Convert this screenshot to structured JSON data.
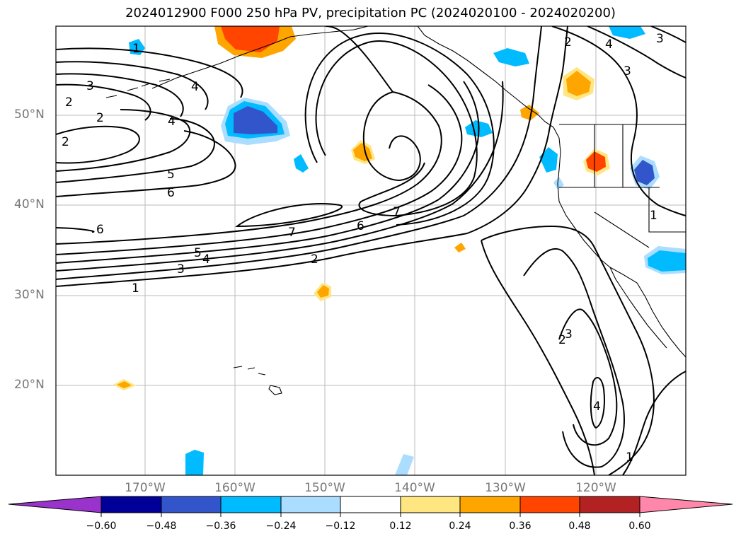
{
  "title": "2024012900 F000 250 hPa PV, precipitation PC (2024020100 - 2024020200)",
  "lat_labels": [
    "50°N",
    "40°N",
    "30°N",
    "20°N"
  ],
  "lon_labels": [
    "170°W",
    "160°W",
    "150°W",
    "140°W",
    "130°W",
    "120°W"
  ],
  "contour_labels": [
    "1",
    "2",
    "3",
    "4",
    "5",
    "6",
    "7",
    "1",
    "2",
    "3",
    "4",
    "5",
    "6",
    "7",
    "2",
    "2",
    "3",
    "4",
    "6",
    "2",
    "3",
    "4",
    "1",
    "1",
    "2",
    "3",
    "4"
  ],
  "colorbar": {
    "ticks": [
      "−0.60",
      "−0.48",
      "−0.36",
      "−0.24",
      "−0.12",
      "0.12",
      "0.24",
      "0.36",
      "0.48",
      "0.60"
    ],
    "colors": [
      "#9933cc",
      "#000099",
      "#3355cc",
      "#00bbff",
      "#aaddff",
      "#ffffff",
      "#ffe680",
      "#ffa500",
      "#ff4500",
      "#b22222",
      "#ff88aa"
    ]
  }
}
